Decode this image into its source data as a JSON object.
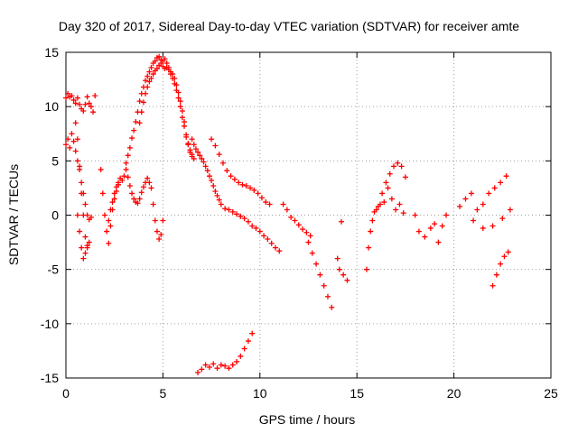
{
  "chart_data": {
    "type": "scatter",
    "title": "Day 320 of 2017, Sidereal Day-to-day VTEC variation (SDTVAR) for receiver amte",
    "xlabel": "GPS time / hours",
    "ylabel": "SDTVAR / TECUs",
    "xlim": [
      0,
      25
    ],
    "ylim": [
      -15,
      15
    ],
    "xticks": [
      0,
      5,
      10,
      15,
      20,
      25
    ],
    "yticks": [
      -15,
      -10,
      -5,
      0,
      5,
      10,
      15
    ],
    "grid": true,
    "marker": "+",
    "series": [
      {
        "name": "SDTVAR",
        "color": "#ff0000",
        "segments": [
          {
            "x": [
              0.0,
              0.1,
              0.2,
              0.3,
              0.4,
              0.5,
              0.6,
              0.7,
              0.8,
              0.9,
              1.0,
              1.1,
              1.2,
              1.3
            ],
            "y": [
              10.8,
              11.2,
              10.9,
              11.0,
              10.6,
              10.3,
              10.8,
              10.2,
              9.8,
              9.6,
              10.2,
              10.9,
              10.3,
              10.0
            ]
          },
          {
            "x": [
              1.4,
              1.5
            ],
            "y": [
              9.5,
              11.0
            ]
          },
          {
            "x": [
              0.0,
              0.1,
              0.2,
              0.3,
              0.4,
              0.5,
              0.6,
              0.7,
              0.8,
              0.9,
              1.0,
              1.1,
              1.2,
              1.3
            ],
            "y": [
              6.5,
              7.0,
              6.2,
              7.5,
              6.8,
              5.9,
              5.0,
              4.2,
              3.0,
              2.0,
              1.0,
              0.0,
              -0.4,
              -0.2
            ]
          },
          {
            "x": [
              0.5,
              0.6,
              0.7,
              0.8,
              0.9,
              1.0,
              1.1,
              1.2
            ],
            "y": [
              8.5,
              7.0,
              4.5,
              2.0,
              0.0,
              -2.0,
              -3.0,
              -2.5
            ]
          },
          {
            "x": [
              0.6,
              0.7,
              0.8,
              0.9,
              1.0,
              1.1
            ],
            "y": [
              0.0,
              -1.5,
              -3.0,
              -4.0,
              -3.5,
              -2.8
            ]
          },
          {
            "x": [
              1.8,
              1.9,
              2.0,
              2.1,
              2.2,
              2.3,
              2.4,
              2.5,
              2.6,
              2.7
            ],
            "y": [
              4.2,
              2.0,
              0.0,
              -1.5,
              -2.6,
              -1.0,
              0.5,
              1.5,
              2.2,
              2.8
            ]
          },
          {
            "x": [
              2.2,
              2.3,
              2.4,
              2.5,
              2.6,
              2.7,
              2.8,
              2.9,
              3.0,
              3.1
            ],
            "y": [
              -0.5,
              0.5,
              1.2,
              2.0,
              2.6,
              3.0,
              3.4,
              3.2,
              3.6,
              4.2
            ]
          },
          {
            "x": [
              3.1,
              3.2,
              3.3,
              3.4,
              3.5,
              3.6,
              3.7,
              3.8,
              3.9,
              4.0,
              4.1,
              4.2,
              4.3,
              4.4,
              4.5,
              4.6,
              4.7,
              4.8,
              4.9,
              5.0,
              5.1,
              5.2,
              5.3,
              5.4,
              5.5,
              5.6,
              5.7,
              5.8,
              5.9,
              6.0,
              6.1,
              6.2,
              6.3,
              6.4,
              6.5
            ],
            "y": [
              4.8,
              5.5,
              6.2,
              7.1,
              7.8,
              8.6,
              9.5,
              10.5,
              11.2,
              11.8,
              12.4,
              12.8,
              13.2,
              13.6,
              14.0,
              14.2,
              14.5,
              14.6,
              14.3,
              14.2,
              14.4,
              14.0,
              13.6,
              13.2,
              13.0,
              12.6,
              12.0,
              11.3,
              10.5,
              9.6,
              8.6,
              7.4,
              6.5,
              5.8,
              5.4
            ]
          },
          {
            "x": [
              3.8,
              3.9,
              4.0,
              4.1,
              4.2,
              4.3,
              4.4,
              4.5,
              4.6,
              4.7,
              4.8,
              4.9,
              5.0,
              5.1,
              5.2,
              5.3,
              5.4,
              5.5,
              5.6,
              5.7,
              5.8,
              5.9,
              6.0,
              6.1,
              6.2,
              6.3,
              6.4,
              6.5,
              6.6
            ],
            "y": [
              8.5,
              9.5,
              10.4,
              11.2,
              11.8,
              12.3,
              12.6,
              13.0,
              13.3,
              13.5,
              13.8,
              14.0,
              13.7,
              13.5,
              13.6,
              13.4,
              13.0,
              12.6,
              12.1,
              11.5,
              10.8,
              10.0,
              9.0,
              8.2,
              7.2,
              6.6,
              6.0,
              5.6,
              5.2
            ]
          },
          {
            "x": [
              3.2,
              3.3,
              3.4,
              3.5,
              3.6,
              3.7,
              3.8,
              3.9,
              4.0,
              4.1,
              4.2,
              4.3,
              4.4
            ],
            "y": [
              3.5,
              2.7,
              2.0,
              1.5,
              1.2,
              1.1,
              1.5,
              2.1,
              2.6,
              3.0,
              3.4,
              3.0,
              2.5
            ]
          },
          {
            "x": [
              4.5,
              4.6,
              4.7,
              4.8,
              4.9,
              5.0
            ],
            "y": [
              1.0,
              -0.5,
              -1.5,
              -2.2,
              -1.8,
              -0.5
            ]
          },
          {
            "x": [
              6.5,
              6.6,
              6.7,
              6.8,
              6.9,
              7.0,
              7.1,
              7.2,
              7.3,
              7.4,
              7.5,
              7.6,
              7.7,
              7.8,
              7.9,
              8.0,
              8.2,
              8.4,
              8.6,
              8.8,
              9.0,
              9.2,
              9.4,
              9.6,
              9.8,
              10.0,
              10.2,
              10.4,
              10.6,
              10.8,
              11.0
            ],
            "y": [
              7.0,
              6.5,
              6.1,
              5.8,
              5.5,
              5.2,
              4.9,
              4.5,
              4.1,
              3.6,
              3.2,
              2.7,
              2.2,
              1.8,
              1.4,
              1.0,
              0.6,
              0.5,
              0.3,
              0.1,
              -0.1,
              -0.3,
              -0.6,
              -1.0,
              -1.2,
              -1.5,
              -1.9,
              -2.2,
              -2.6,
              -3.0,
              -3.3
            ]
          },
          {
            "x": [
              7.5,
              7.7,
              7.9,
              8.1,
              8.3,
              8.5,
              8.7,
              8.9,
              9.1,
              9.3,
              9.5,
              9.7,
              9.9,
              10.1,
              10.3,
              10.5
            ],
            "y": [
              7.0,
              6.4,
              5.6,
              4.8,
              4.1,
              3.6,
              3.3,
              3.0,
              2.8,
              2.7,
              2.5,
              2.3,
              2.0,
              1.6,
              1.2,
              1.0
            ]
          },
          {
            "x": [
              6.8,
              7.0,
              7.2,
              7.4,
              7.6,
              7.8,
              8.0,
              8.2,
              8.4,
              8.6,
              8.8,
              9.0,
              9.2,
              9.4,
              9.6
            ],
            "y": [
              -14.5,
              -14.2,
              -13.8,
              -14.0,
              -13.7,
              -14.1,
              -13.8,
              -13.9,
              -14.1,
              -13.8,
              -13.5,
              -13.0,
              -12.3,
              -11.6,
              -10.9
            ]
          },
          {
            "x": [
              11.2,
              11.4,
              11.6,
              11.8,
              12.0,
              12.2,
              12.4,
              12.6
            ],
            "y": [
              1.0,
              0.5,
              -0.2,
              -0.5,
              -0.9,
              -1.3,
              -1.6,
              -1.9
            ]
          },
          {
            "x": [
              12.5,
              12.7,
              12.9,
              13.1,
              13.3,
              13.5,
              13.7
            ],
            "y": [
              -2.5,
              -3.5,
              -4.5,
              -5.5,
              -6.5,
              -7.5,
              -8.5
            ]
          },
          {
            "x": [
              14.0,
              14.1,
              14.3,
              14.5
            ],
            "y": [
              -4.0,
              -5.0,
              -5.5,
              -6.0
            ]
          },
          {
            "x": [
              14.2
            ],
            "y": [
              -0.6
            ]
          },
          {
            "x": [
              15.5,
              15.6,
              15.7,
              15.8,
              15.9,
              16.0,
              16.1,
              16.2
            ],
            "y": [
              -5.0,
              -3.0,
              -1.5,
              -0.5,
              0.3,
              0.5,
              0.8,
              1.0
            ]
          },
          {
            "x": [
              16.3,
              16.5,
              16.7,
              16.9,
              17.1,
              17.3,
              17.5
            ],
            "y": [
              2.0,
              3.0,
              3.8,
              4.5,
              4.8,
              4.5,
              3.5
            ]
          },
          {
            "x": [
              16.4,
              16.6,
              16.8,
              17.0,
              17.2,
              17.4
            ],
            "y": [
              1.2,
              2.5,
              1.5,
              0.5,
              1.0,
              0.2
            ]
          },
          {
            "x": [
              18.0,
              18.2,
              18.5,
              18.8,
              19.0,
              19.2,
              19.4,
              19.6
            ],
            "y": [
              0.0,
              -1.5,
              -2.0,
              -1.2,
              -0.8,
              -2.5,
              -1.0,
              0.0
            ]
          },
          {
            "x": [
              20.3,
              20.6,
              20.9,
              21.2,
              21.5,
              21.8,
              22.1,
              22.4,
              22.7,
              22.9
            ],
            "y": [
              0.8,
              1.5,
              2.0,
              0.5,
              1.0,
              2.0,
              2.5,
              3.0,
              3.6,
              0.5
            ]
          },
          {
            "x": [
              21.0,
              21.5,
              22.0,
              22.5
            ],
            "y": [
              -0.5,
              -1.2,
              -1.0,
              -0.3
            ]
          },
          {
            "x": [
              22.0,
              22.2,
              22.4,
              22.6,
              22.8
            ],
            "y": [
              -6.5,
              -5.5,
              -4.5,
              -3.8,
              -3.4
            ]
          }
        ]
      }
    ]
  }
}
